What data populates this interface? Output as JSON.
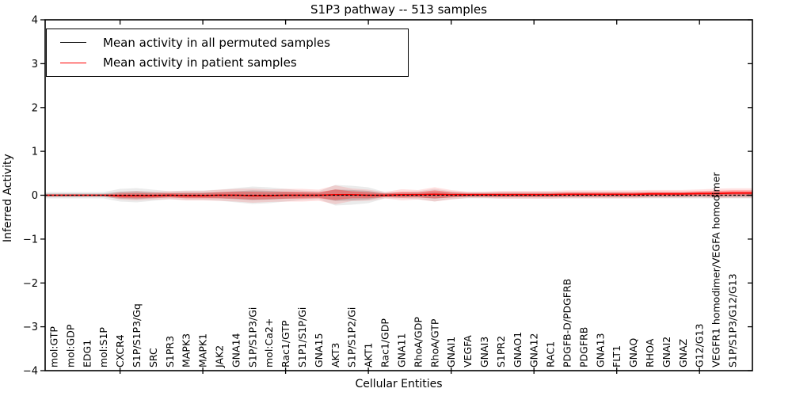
{
  "chart_data": {
    "type": "line",
    "title": "S1P3 pathway -- 513 samples",
    "xlabel": "Cellular Entities",
    "ylabel": "Inferred Activity",
    "ylim": [
      -4,
      4
    ],
    "yticks": [
      -4,
      -3,
      -2,
      -1,
      0,
      1,
      2,
      3,
      4
    ],
    "x_major_tick_every": 5,
    "grid": false,
    "legend_position": "upper-left",
    "categories": [
      "mol:GTP",
      "mol:GDP",
      "EDG1",
      "mol:S1P",
      "CXCR4",
      "S1P/S1P3/Gq",
      "SRC",
      "S1PR3",
      "MAPK3",
      "MAPK1",
      "JAK2",
      "GNA14",
      "S1P/S1P3/Gi",
      "mol:Ca2+",
      "Rac1/GTP",
      "S1P1/S1P/Gi",
      "GNA15",
      "AKT3",
      "S1P/S1P2/Gi",
      "AKT1",
      "Rac1/GDP",
      "GNA11",
      "RhoA/GDP",
      "RhoA/GTP",
      "GNAI1",
      "VEGFA",
      "GNAI3",
      "S1PR2",
      "GNAO1",
      "GNA12",
      "RAC1",
      "PDGFB-D/PDGFRB",
      "PDGFRB",
      "GNA13",
      "FLT1",
      "GNAQ",
      "RHOA",
      "GNAI2",
      "GNAZ",
      "G12/G13",
      "VEGFR1 homodimer/VEGFA homodimer",
      "S1P/S1P3/G12/G13"
    ],
    "series": [
      {
        "name": "Mean activity in all permuted samples",
        "color": "#000000",
        "line_style": "dashed",
        "band_color": "#000000",
        "values": [
          0,
          0,
          0,
          0,
          0,
          0,
          0,
          0,
          0,
          0,
          0,
          0,
          0,
          0,
          0,
          0,
          0,
          0,
          0,
          0,
          0,
          0,
          0,
          0,
          0,
          0,
          0,
          0,
          0,
          0,
          0,
          0,
          0,
          0,
          0,
          0,
          0,
          0,
          0,
          0,
          0,
          0
        ],
        "band": [
          0.04,
          0.04,
          0.04,
          0.04,
          0.08,
          0.09,
          0.07,
          0.05,
          0.06,
          0.06,
          0.07,
          0.09,
          0.11,
          0.1,
          0.08,
          0.06,
          0.05,
          0.13,
          0.12,
          0.1,
          0.04,
          0.04,
          0.05,
          0.08,
          0.05,
          0.04,
          0.04,
          0.04,
          0.04,
          0.04,
          0.04,
          0.04,
          0.04,
          0.04,
          0.04,
          0.04,
          0.04,
          0.04,
          0.04,
          0.04,
          0.04,
          0.04
        ]
      },
      {
        "name": "Mean activity in patient samples",
        "color": "#ff0000",
        "line_style": "solid",
        "band_color": "#ff0000",
        "values": [
          0,
          0,
          0,
          0,
          -0.01,
          -0.01,
          -0.01,
          0,
          -0.01,
          -0.01,
          0,
          0,
          -0.01,
          -0.01,
          0,
          0,
          0,
          0.01,
          0.01,
          0,
          0,
          0.01,
          0.01,
          0.02,
          0.01,
          0.01,
          0.01,
          0.01,
          0.01,
          0.01,
          0.01,
          0.02,
          0.02,
          0.02,
          0.02,
          0.02,
          0.03,
          0.03,
          0.03,
          0.04,
          0.04,
          0.05
        ],
        "band": [
          0.01,
          0.01,
          0.01,
          0.01,
          0.05,
          0.06,
          0.05,
          0.05,
          0.06,
          0.06,
          0.07,
          0.08,
          0.09,
          0.08,
          0.08,
          0.08,
          0.07,
          0.12,
          0.08,
          0.07,
          0.04,
          0.07,
          0.06,
          0.09,
          0.06,
          0.04,
          0.04,
          0.05,
          0.05,
          0.05,
          0.05,
          0.05,
          0.05,
          0.05,
          0.05,
          0.05,
          0.05,
          0.05,
          0.05,
          0.05,
          0.06,
          0.06
        ]
      }
    ]
  }
}
